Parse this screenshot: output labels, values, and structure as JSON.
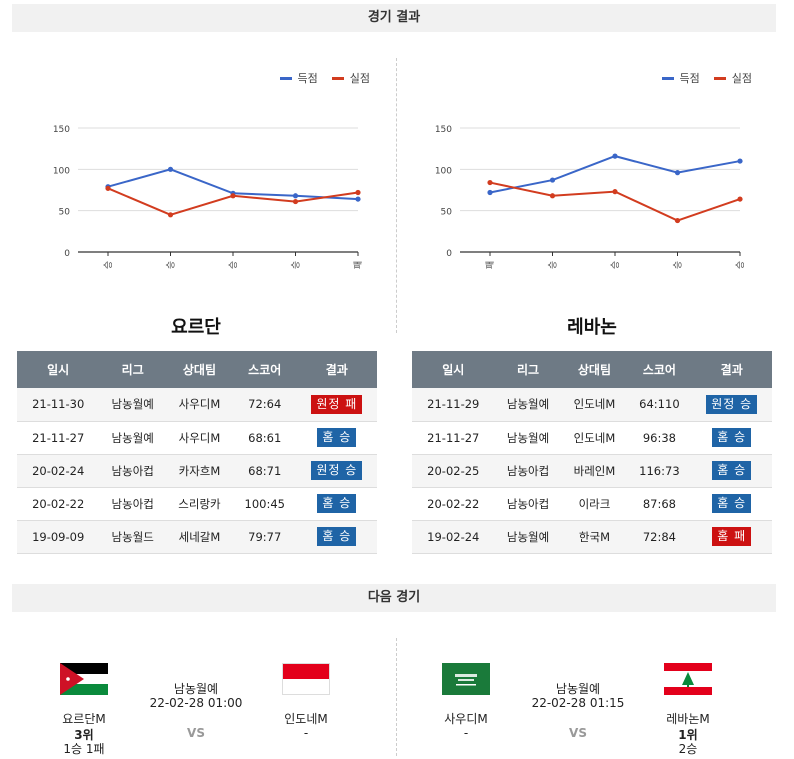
{
  "sections": {
    "results_title": "경기 결과",
    "next_title": "다음 경기"
  },
  "legend": {
    "scored": "득점",
    "conceded": "실점"
  },
  "colors": {
    "scored": "#3a66c8",
    "conceded": "#d23c1f",
    "win": "#1f64a6",
    "loss": "#cc1111"
  },
  "chart_data": [
    {
      "type": "line",
      "categories": [
        "승",
        "승",
        "승",
        "승",
        "패"
      ],
      "series": [
        {
          "name": "득점",
          "values": [
            79,
            100,
            71,
            68,
            64
          ]
        },
        {
          "name": "실점",
          "values": [
            77,
            45,
            68,
            61,
            72
          ]
        }
      ],
      "ylim": [
        0,
        150
      ],
      "yticks": [
        0,
        50,
        100,
        150
      ],
      "legend_position": "top-right",
      "grid": true
    },
    {
      "type": "line",
      "categories": [
        "패",
        "승",
        "승",
        "승",
        "승"
      ],
      "series": [
        {
          "name": "득점",
          "values": [
            72,
            87,
            116,
            96,
            110
          ]
        },
        {
          "name": "실점",
          "values": [
            84,
            68,
            73,
            38,
            64
          ]
        }
      ],
      "ylim": [
        0,
        150
      ],
      "yticks": [
        0,
        50,
        100,
        150
      ],
      "legend_position": "top-right",
      "grid": true
    }
  ],
  "table_headers": [
    "일시",
    "리그",
    "상대팀",
    "스코어",
    "결과"
  ],
  "teams": [
    {
      "name": "요르단",
      "rows": [
        {
          "date": "21-11-30",
          "league": "남농월예",
          "opponent": "사우디M",
          "score": "72:64",
          "result": "원정 패",
          "kind": "loss"
        },
        {
          "date": "21-11-27",
          "league": "남농월예",
          "opponent": "사우디M",
          "score": "68:61",
          "result": "홈 승",
          "kind": "win"
        },
        {
          "date": "20-02-24",
          "league": "남농아컵",
          "opponent": "카자흐M",
          "score": "68:71",
          "result": "원정 승",
          "kind": "win"
        },
        {
          "date": "20-02-22",
          "league": "남농아컵",
          "opponent": "스리랑카",
          "score": "100:45",
          "result": "홈 승",
          "kind": "win"
        },
        {
          "date": "19-09-09",
          "league": "남농월드",
          "opponent": "세네갈M",
          "score": "79:77",
          "result": "홈 승",
          "kind": "win"
        }
      ]
    },
    {
      "name": "레바논",
      "rows": [
        {
          "date": "21-11-29",
          "league": "남농월예",
          "opponent": "인도네M",
          "score": "64:110",
          "result": "원정 승",
          "kind": "win"
        },
        {
          "date": "21-11-27",
          "league": "남농월예",
          "opponent": "인도네M",
          "score": "96:38",
          "result": "홈 승",
          "kind": "win"
        },
        {
          "date": "20-02-25",
          "league": "남농아컵",
          "opponent": "바레인M",
          "score": "116:73",
          "result": "홈 승",
          "kind": "win"
        },
        {
          "date": "20-02-22",
          "league": "남농아컵",
          "opponent": "이라크",
          "score": "87:68",
          "result": "홈 승",
          "kind": "win"
        },
        {
          "date": "19-02-24",
          "league": "남농월예",
          "opponent": "한국M",
          "score": "72:84",
          "result": "홈 패",
          "kind": "loss"
        }
      ]
    }
  ],
  "next_matches": [
    {
      "league": "남농월예",
      "datetime": "22-02-28 01:00",
      "vs": "VS",
      "home": {
        "name": "요르단M",
        "rank": "3위",
        "record": "1승 1패",
        "flag": "jordan-flag"
      },
      "away": {
        "name": "인도네M",
        "rank": "",
        "record": "-",
        "flag": "indonesia-flag"
      }
    },
    {
      "league": "남농월예",
      "datetime": "22-02-28 01:15",
      "vs": "VS",
      "home": {
        "name": "사우디M",
        "rank": "",
        "record": "-",
        "flag": "saudi-flag"
      },
      "away": {
        "name": "레바논M",
        "rank": "1위",
        "record": "2승",
        "flag": "lebanon-flag"
      }
    }
  ]
}
